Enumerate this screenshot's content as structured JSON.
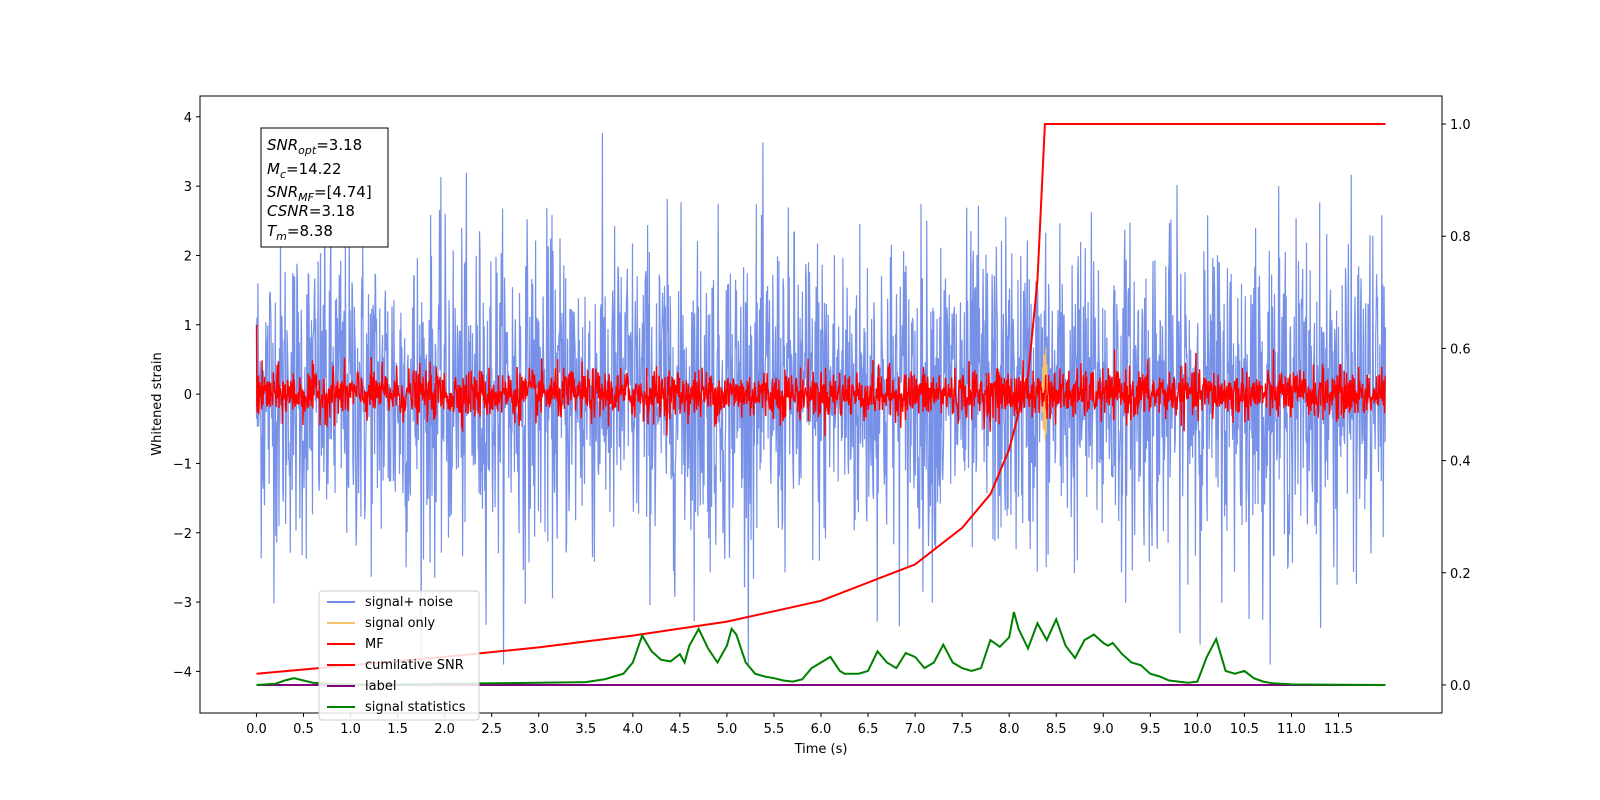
{
  "chart_data": {
    "type": "line",
    "xlabel": "Time (s)",
    "ylabel": "Whitened strain",
    "xlim": [
      -0.6,
      12.6
    ],
    "ylim": [
      -4.6,
      4.3
    ],
    "y2lim": [
      -0.05,
      1.05
    ],
    "x_ticks": [
      "0.0",
      "0.5",
      "1.0",
      "1.5",
      "2.0",
      "2.5",
      "3.0",
      "3.5",
      "4.0",
      "4.5",
      "5.0",
      "5.5",
      "6.0",
      "6.5",
      "7.0",
      "7.5",
      "8.0",
      "8.5",
      "9.0",
      "9.5",
      "10.0",
      "10.5",
      "11.0",
      "11.5"
    ],
    "y_ticks": [
      "4",
      "3",
      "2",
      "1",
      "0",
      "−1",
      "−2",
      "−3",
      "−4"
    ],
    "y2_ticks": [
      "1.0",
      "0.8",
      "0.6",
      "0.4",
      "0.2",
      "0.0"
    ],
    "annotation": {
      "lines": [
        {
          "sym": "SNR",
          "sub": "opt",
          "val": "=3.18"
        },
        {
          "sym": "M",
          "sub": "c",
          "val": "=14.22"
        },
        {
          "sym": "SNR",
          "sub": "MF",
          "val": "=[4.74]"
        },
        {
          "sym": "CSNR",
          "sub": "",
          "val": "=3.18"
        },
        {
          "sym": "T",
          "sub": "m",
          "val": "=8.38"
        }
      ]
    },
    "legend": {
      "position": "lower-left",
      "entries": [
        {
          "label": "signal+ noise",
          "color": "#6f8be6"
        },
        {
          "label": "signal only",
          "color": "#f5c26b"
        },
        {
          "label": "MF",
          "color": "#ff0000"
        },
        {
          "label": "cumilative SNR",
          "color": "#ff0000"
        },
        {
          "label": "label",
          "color": "#800080"
        },
        {
          "label": "signal statistics",
          "color": "#008000"
        }
      ]
    },
    "series": [
      {
        "name": "signal+ noise",
        "axis": "left",
        "color": "#6f8be6",
        "x_range": [
          0,
          12
        ],
        "noise_sd": 1.15,
        "peak_range": [
          -3.9,
          3.95
        ]
      },
      {
        "name": "signal only",
        "axis": "left",
        "color": "#f5c26b",
        "note_x": 8.38,
        "peak": 0.75
      },
      {
        "name": "MF",
        "axis": "left",
        "color": "#ff0000",
        "x_range": [
          0,
          12
        ],
        "noise_sd": 0.18,
        "start_value": 1.0
      },
      {
        "name": "cumilative SNR",
        "axis": "right",
        "color": "#ff0000",
        "x": [
          0,
          1,
          2,
          3,
          4,
          5,
          6,
          7,
          7.5,
          7.8,
          8.0,
          8.2,
          8.3,
          8.38,
          9,
          10,
          11,
          12
        ],
        "y": [
          0.02,
          0.035,
          0.05,
          0.067,
          0.088,
          0.113,
          0.15,
          0.215,
          0.28,
          0.34,
          0.42,
          0.55,
          0.72,
          1.0,
          1.0,
          1.0,
          1.0,
          1.0
        ]
      },
      {
        "name": "label",
        "axis": "right",
        "color": "#800080",
        "x": [
          0,
          12
        ],
        "y": [
          0.0,
          0.0
        ]
      },
      {
        "name": "signal statistics",
        "axis": "right",
        "color": "#008000",
        "x": [
          0,
          0.2,
          0.3,
          0.4,
          0.5,
          0.6,
          0.8,
          1.0,
          1.5,
          2.0,
          2.5,
          3.0,
          3.5,
          3.7,
          3.8,
          3.9,
          4.0,
          4.1,
          4.2,
          4.3,
          4.4,
          4.5,
          4.55,
          4.6,
          4.7,
          4.8,
          4.9,
          5.0,
          5.05,
          5.1,
          5.2,
          5.3,
          5.4,
          5.5,
          5.6,
          5.7,
          5.8,
          5.9,
          6.0,
          6.1,
          6.2,
          6.25,
          6.3,
          6.4,
          6.5,
          6.6,
          6.7,
          6.8,
          6.9,
          7.0,
          7.1,
          7.2,
          7.3,
          7.4,
          7.5,
          7.6,
          7.7,
          7.8,
          7.9,
          8.0,
          8.05,
          8.1,
          8.2,
          8.3,
          8.4,
          8.5,
          8.6,
          8.7,
          8.8,
          8.9,
          9.0,
          9.05,
          9.1,
          9.2,
          9.3,
          9.4,
          9.5,
          9.6,
          9.7,
          9.8,
          9.9,
          10.0,
          10.1,
          10.2,
          10.3,
          10.4,
          10.5,
          10.6,
          10.7,
          10.8,
          11.0,
          11.5,
          12.0
        ],
        "y": [
          0,
          0.002,
          0.008,
          0.012,
          0.008,
          0.004,
          0.002,
          0.001,
          0.001,
          0.002,
          0.003,
          0.004,
          0.005,
          0.01,
          0.015,
          0.02,
          0.04,
          0.088,
          0.06,
          0.045,
          0.042,
          0.055,
          0.04,
          0.07,
          0.1,
          0.065,
          0.04,
          0.07,
          0.1,
          0.09,
          0.04,
          0.02,
          0.015,
          0.012,
          0.008,
          0.006,
          0.01,
          0.03,
          0.04,
          0.05,
          0.025,
          0.02,
          0.02,
          0.02,
          0.025,
          0.06,
          0.04,
          0.03,
          0.057,
          0.05,
          0.03,
          0.04,
          0.072,
          0.04,
          0.03,
          0.025,
          0.03,
          0.08,
          0.068,
          0.085,
          0.13,
          0.1,
          0.065,
          0.11,
          0.08,
          0.117,
          0.07,
          0.048,
          0.08,
          0.09,
          0.075,
          0.07,
          0.075,
          0.055,
          0.04,
          0.035,
          0.02,
          0.015,
          0.008,
          0.006,
          0.004,
          0.006,
          0.05,
          0.082,
          0.025,
          0.02,
          0.025,
          0.012,
          0.006,
          0.003,
          0.001,
          0.0005,
          0.0
        ]
      }
    ]
  }
}
